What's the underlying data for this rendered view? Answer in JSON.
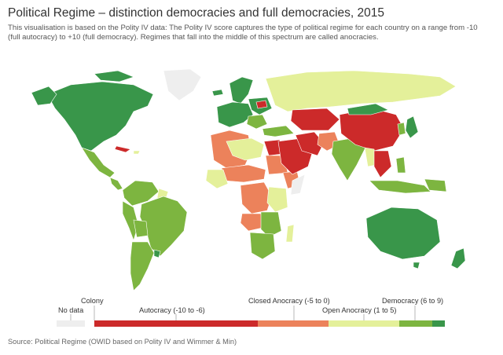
{
  "title": "Political Regime – distinction democracies and full democracies, 2015",
  "subtitle": "This visualisation is based on the Polity IV data: The Polity IV score captures the type of political regime for each country on a range from -10 (full autocracy) to +10 (full democracy). Regimes that fall into the middle of this spectrum are called anocracies.",
  "source": "Source: Political Regime (OWID based on Polity IV and Wimmer & Min)",
  "colors": {
    "no_data": "#eeeeee",
    "colony": "#d7d7d7",
    "autocracy": "#cc2a2a",
    "closed_anocracy": "#ec825b",
    "open_anocracy": "#e4f09a",
    "democracy": "#7db540",
    "full_democracy": "#39964a",
    "ocean": "#ffffff",
    "border": "#ffffff"
  },
  "legend": {
    "no_data_label": "No data",
    "colony_label": "Colony",
    "autocracy_label": "Autocracy (-10 to -6)",
    "closed_anocracy_label": "Closed Anocracy (-5 to 0)",
    "open_anocracy_label": "Open Anocracy (1 to 5)",
    "democracy_label": "Democracy (6 to 9)"
  }
}
